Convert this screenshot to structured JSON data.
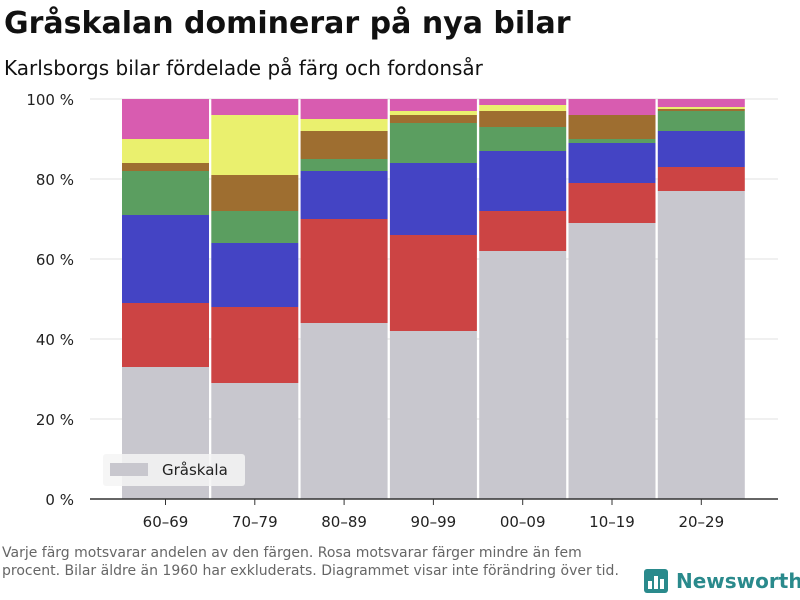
{
  "header": {
    "title": "Gråskalan dominerar på nya bilar",
    "subtitle": "Karlsborgs bilar fördelade på färg och fordonsår"
  },
  "footnote": "Varje färg motsvarar andelen av den färgen. Rosa motsvarar färger mindre än fem procent. Bilar äldre än 1960 har exkluderats. Diagrammet visar inte förändring över tid.",
  "brand": {
    "name": "Newsworthy",
    "color": "#2a8a8c"
  },
  "chart_data": {
    "type": "bar",
    "stacked": true,
    "categories": [
      "60–69",
      "70–79",
      "80–89",
      "90–99",
      "00–09",
      "10–19",
      "20–29"
    ],
    "ylim": [
      0,
      100
    ],
    "yticks": [
      0,
      20,
      40,
      60,
      80,
      100
    ],
    "ytick_labels": [
      "0 %",
      "20 %",
      "40 %",
      "60 %",
      "80 %",
      "100 %"
    ],
    "grid": true,
    "legend": {
      "position": "bottom-left",
      "entries": [
        "Gråskala"
      ]
    },
    "series": [
      {
        "name": "Gråskala",
        "color": "#c8c7ce",
        "values": [
          33,
          29,
          44,
          42,
          62,
          69,
          77
        ]
      },
      {
        "color": "#cc4444",
        "values": [
          16,
          19,
          26,
          24,
          10,
          10,
          6
        ]
      },
      {
        "color": "#4444c4",
        "values": [
          22,
          16,
          12,
          18,
          15,
          10,
          9
        ]
      },
      {
        "color": "#5b9e60",
        "values": [
          11,
          8,
          3,
          10,
          6,
          1,
          5
        ]
      },
      {
        "color": "#9e6e30",
        "values": [
          2,
          9,
          7,
          2,
          4,
          6,
          0.5
        ]
      },
      {
        "color": "#eaf06e",
        "values": [
          6,
          15,
          3,
          1,
          1.5,
          0,
          0.5
        ]
      },
      {
        "color": "#d85cb0",
        "values": [
          10,
          4,
          5,
          3,
          1.5,
          4,
          2
        ]
      }
    ]
  }
}
